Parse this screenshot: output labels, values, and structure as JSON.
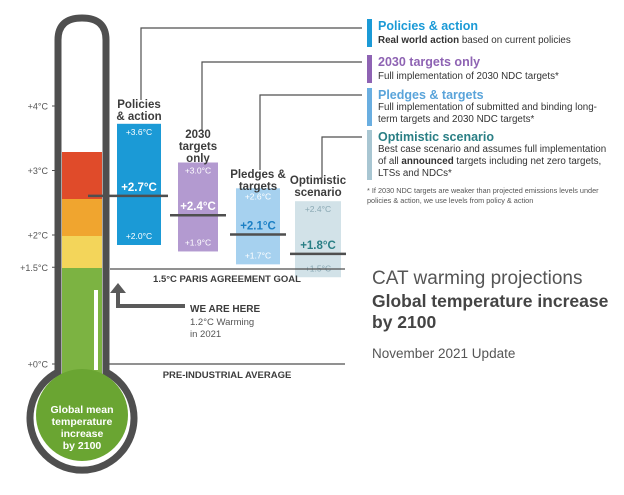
{
  "colors": {
    "policies": "#1b9ad6",
    "targets2030": "#8e63b3",
    "pledges": "#6aaee0",
    "optimistic": "#a8c6d2",
    "title_teal": "#2a7f85",
    "gray": "#4a4a4a",
    "thermo_green": "#7cb342",
    "thermo_green_dark": "#5a9a2a",
    "thermo_yellow": "#f3d55a",
    "thermo_orange": "#f0a52f",
    "thermo_red": "#e04b2a"
  },
  "thermometer": {
    "ticks": [
      {
        "value": 4,
        "label": "+4°C"
      },
      {
        "value": 3,
        "label": "+3°C"
      },
      {
        "value": 2,
        "label": "+2°C"
      },
      {
        "value": 1.5,
        "label": "+1.5°C"
      },
      {
        "value": 0,
        "label": "+0°C"
      }
    ],
    "bulb_label": [
      "Global mean",
      "temperature",
      "increase",
      "by 2100"
    ]
  },
  "chart_data": {
    "type": "bar",
    "title": "",
    "ylim": [
      0,
      4.5
    ],
    "categories": [
      "Policies & action",
      "2030 targets only",
      "Pledges & targets",
      "Optimistic scenario"
    ],
    "series": [
      {
        "name": "Policies & action",
        "low": 2.0,
        "central": 2.7,
        "high": 3.6,
        "low_label": "+2.0°C",
        "central_label": "+2.7°C",
        "high_label": "+3.6°C",
        "color": "#1b9ad6",
        "header": [
          "Policies",
          "& action"
        ]
      },
      {
        "name": "2030 targets only",
        "low": 1.9,
        "central": 2.4,
        "high": 3.0,
        "low_label": "+1.9°C",
        "central_label": "+2.4°C",
        "high_label": "+3.0°C",
        "color": "#b39ad0",
        "header": [
          "2030",
          "targets",
          "only"
        ]
      },
      {
        "name": "Pledges & targets",
        "low": 1.7,
        "central": 2.1,
        "high": 2.6,
        "low_label": "+1.7°C",
        "central_label": "+2.1°C",
        "high_label": "+2.6°C",
        "color": "#a6d1ef",
        "header": [
          "Pledges &",
          "targets"
        ]
      },
      {
        "name": "Optimistic scenario",
        "low": 1.5,
        "central": 1.8,
        "high": 2.4,
        "low_label": "+1.5°C",
        "central_label": "+1.8°C",
        "high_label": "+2.4°C",
        "color": "#d2e2e8",
        "header": [
          "Optimistic",
          "scenario"
        ]
      }
    ],
    "reference_lines": [
      {
        "value": 1.5,
        "label": "1.5°C PARIS AGREEMENT GOAL"
      },
      {
        "value": 0,
        "label": "PRE-INDUSTRIAL AVERAGE"
      }
    ],
    "current": {
      "value": 1.2,
      "title": "WE ARE HERE",
      "line1": "1.2°C Warming",
      "line2": "in 2021"
    }
  },
  "legend": [
    {
      "title": "Policies & action",
      "desc_bold": "Real world action",
      "desc": " based on current policies"
    },
    {
      "title": "2030 targets only",
      "desc": "Full implementation of 2030 NDC targets*"
    },
    {
      "title": "Pledges & targets",
      "desc": "Full implementation of submitted and binding long-term targets and 2030 NDC targets*"
    },
    {
      "title": "Optimistic scenario",
      "desc_pre": "Best case scenario and assumes full implementation of all ",
      "desc_bold": "announced",
      "desc_post": " targets including net zero targets, LTSs and NDCs*"
    }
  ],
  "footnote": "* If 2030 NDC targets are weaker than projected emissions levels under policies & action, we use levels from policy & action",
  "heading": {
    "title": "CAT warming projections",
    "subtitle": "Global temperature increase by 2100",
    "update": "November 2021 Update"
  }
}
